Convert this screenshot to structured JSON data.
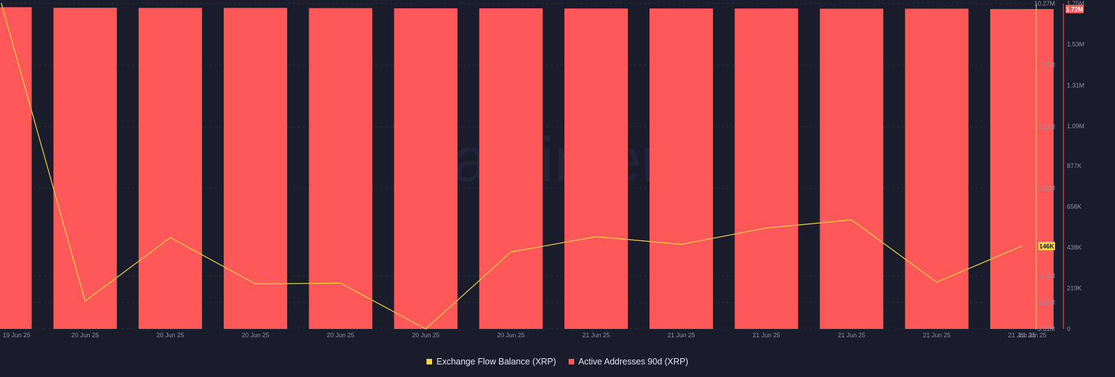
{
  "chart_data": {
    "type": "bar",
    "categories": [
      "19 Jun 25",
      "20 Jun 25",
      "20 Jun 25",
      "20 Jun 25",
      "20 Jun 25",
      "20 Jun 25",
      "20 Jun 25",
      "21 Jun 25",
      "21 Jun 25",
      "21 Jun 25",
      "21 Jun 25",
      "21 Jun 25",
      "21 Jun 25"
    ],
    "x_tick_labels": [
      "19 Jun 25",
      "20 Jun 25",
      "20 Jun 25",
      "20 Jun 25",
      "20 Jun 25",
      "20 Jun 25",
      "20 Jun 25",
      "21 Jun 25",
      "21 Jun 25",
      "21 Jun 25",
      "21 Jun 25",
      "21 Jun 25",
      "21 Jun 25",
      "21 Jun 25"
    ],
    "series": [
      {
        "name": "Active Addresses 90d (XRP)",
        "type": "bar",
        "axis": "right",
        "color": "#ff5858",
        "values": [
          1730000,
          1727000,
          1726000,
          1726000,
          1725000,
          1724000,
          1724000,
          1723000,
          1723000,
          1723000,
          1722000,
          1722000,
          1720000
        ]
      },
      {
        "name": "Exchange Flow Balance (XRP)",
        "type": "line",
        "axis": "left",
        "color": "#f7d547",
        "values": [
          10270000,
          -2150000,
          500000,
          -1430000,
          -1400000,
          -3310000,
          -100000,
          540000,
          220000,
          900000,
          1240000,
          -1360000,
          146000
        ]
      }
    ],
    "left_axis": {
      "ticks": [
        "10.27M",
        "7.7M",
        "5.13M",
        "2.56M",
        "-1.1M",
        "-2.21M",
        "-3.31M"
      ],
      "ylim": [
        -3310000,
        10270000
      ],
      "current_value_badge": "146K"
    },
    "right_axis": {
      "ticks": [
        "1.75M",
        "1.53M",
        "1.31M",
        "1.09M",
        "877K",
        "658K",
        "438K",
        "219K",
        "0"
      ],
      "ylim": [
        0,
        1750000
      ],
      "current_value_badge": "1.72M"
    },
    "legend": {
      "placement": "bottom-center",
      "entries": [
        {
          "label": "Exchange Flow Balance (XRP)",
          "color": "#f7d547"
        },
        {
          "label": "Active Addresses 90d (XRP)",
          "color": "#ff5858"
        }
      ]
    },
    "grid": true,
    "watermark": "santiment"
  }
}
